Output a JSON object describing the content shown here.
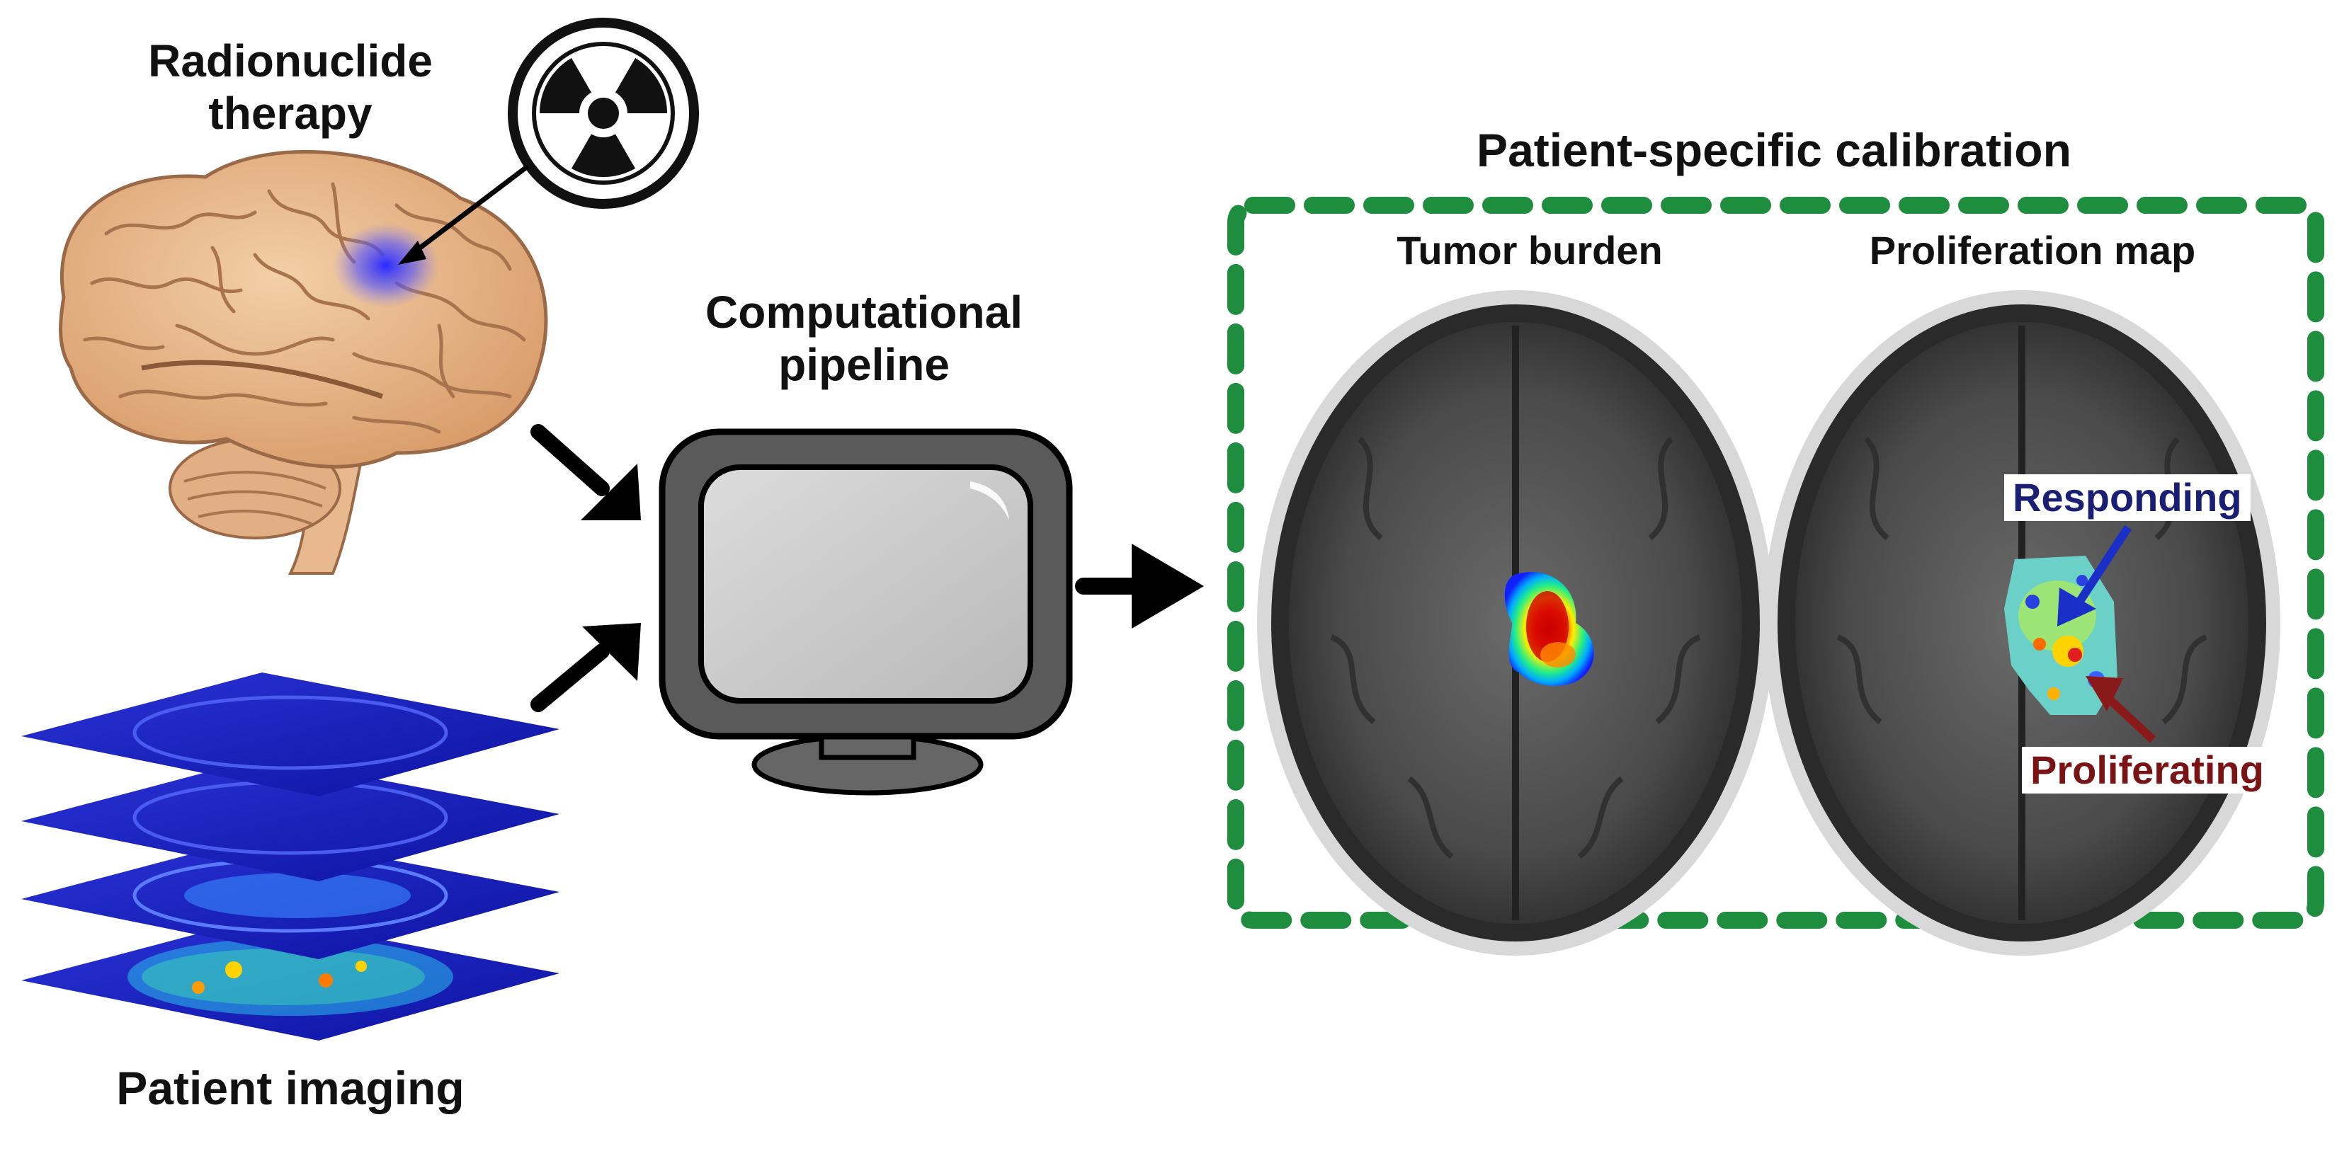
{
  "labels": {
    "radionuclide_line1": "Radionuclide",
    "radionuclide_line2": "therapy",
    "pipeline_line1": "Computational",
    "pipeline_line2": "pipeline",
    "calibration_title": "Patient-specific calibration",
    "tumor_burden": "Tumor burden",
    "proliferation_map": "Proliferation map",
    "responding": "Responding",
    "proliferating": "Proliferating",
    "patient_imaging": "Patient imaging"
  },
  "colors": {
    "dashed_box": "#1e8e3e",
    "responding": "#1a1f73",
    "proliferating": "#7a1414",
    "arrow": "#000000",
    "monitor_frame": "#555555",
    "monitor_screen": "#c9c9c9",
    "imaging_slice": "#1a1fb8",
    "brain": "#e8b98e"
  },
  "icons": {
    "radiation": "radiation-icon",
    "brain": "brain-illustration",
    "monitor": "monitor-icon",
    "imaging_stack": "imaging-stack",
    "mri_scan": "mri-scan"
  }
}
